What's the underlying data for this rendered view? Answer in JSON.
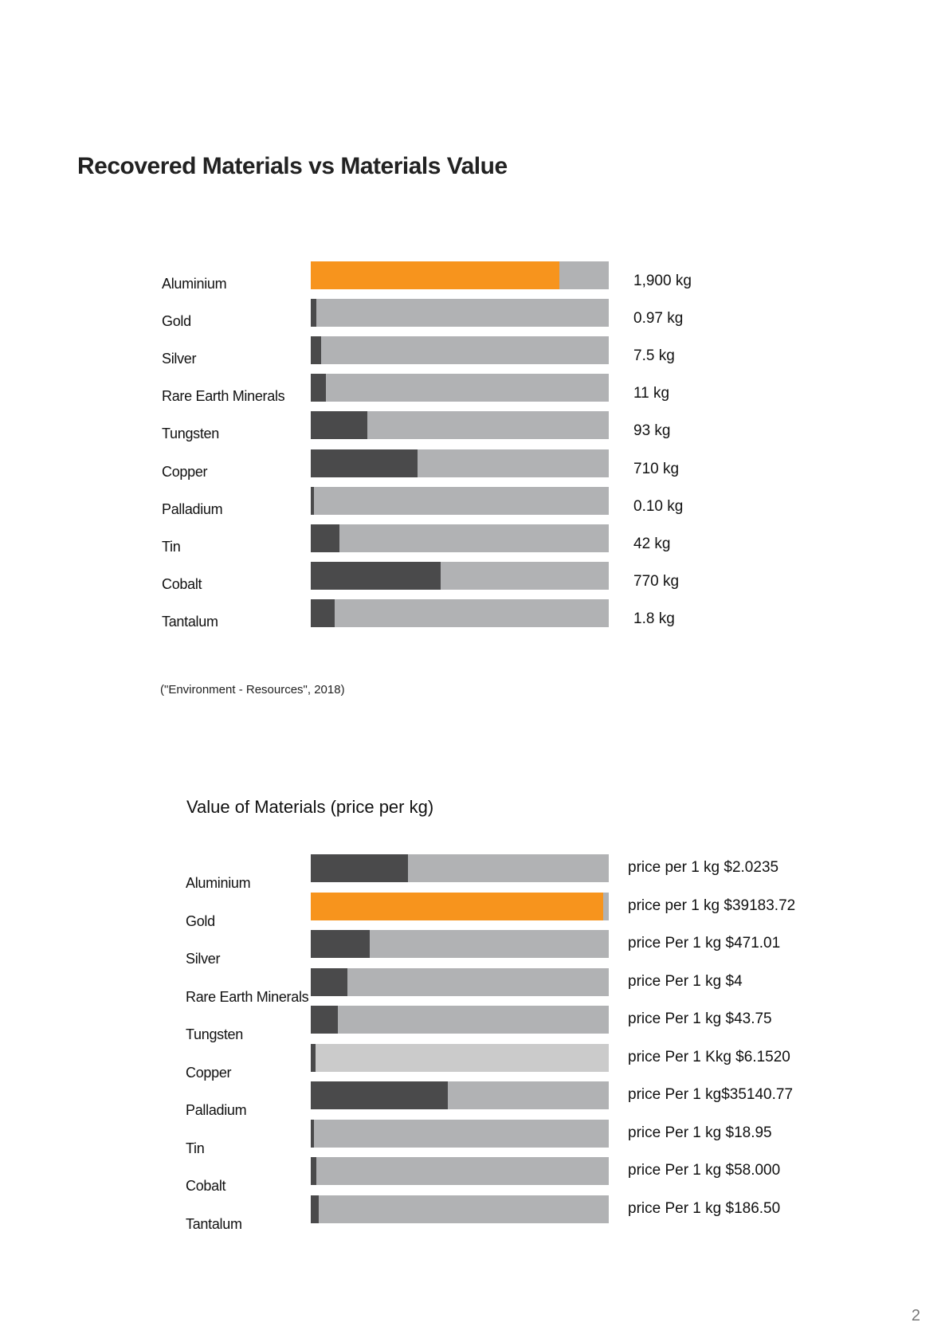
{
  "page": {
    "title": "Recovered Materials vs Materials Value",
    "source": "(\"Environment - Resources\", 2018)",
    "page_number": "2"
  },
  "colors": {
    "track": "#b1b2b4",
    "track_light": "#cbcbcb",
    "fill": "#4a4a4b",
    "highlight": "#f7941d"
  },
  "chart_data": [
    {
      "type": "bar",
      "orientation": "horizontal",
      "title": "",
      "categories": [
        "Aluminium",
        "Gold",
        "Silver",
        "Rare Earth Minerals",
        "Tungsten",
        "Copper",
        "Palladium",
        "Tin",
        "Cobalt",
        "Tantalum"
      ],
      "value_labels": [
        "1,900 kg",
        "0.97 kg",
        "7.5 kg",
        "11 kg",
        "93 kg",
        "710 kg",
        "0.10 kg",
        "42 kg",
        "770 kg",
        "1.8 kg"
      ],
      "fill_fraction": [
        0.835,
        0.018,
        0.035,
        0.05,
        0.19,
        0.357,
        0.012,
        0.095,
        0.435,
        0.08
      ],
      "highlight_index": 0,
      "light_track_index": -1
    },
    {
      "type": "bar",
      "orientation": "horizontal",
      "title": "Value of Materials (price per kg)",
      "categories": [
        "Aluminium",
        "Gold",
        "Silver",
        "Rare Earth Minerals",
        "Tungsten",
        "Copper",
        "Palladium",
        "Tin",
        "Cobalt",
        "Tantalum"
      ],
      "value_labels": [
        "price per 1 kg $2.0235",
        "price per 1 kg $39183.72",
        "price Per 1 kg $471.01",
        "price Per 1 kg $4",
        "price Per 1 kg $43.75",
        "price Per 1 Kkg $6.1520",
        "price Per 1 kg$35140.77",
        "price Per 1 kg $18.95",
        "price Per 1 kg $58.000",
        "price Per 1 kg $186.50"
      ],
      "fill_fraction": [
        0.325,
        0.98,
        0.198,
        0.122,
        0.09,
        0.016,
        0.46,
        0.012,
        0.02,
        0.027
      ],
      "highlight_index": 1,
      "light_track_index": 5
    }
  ]
}
